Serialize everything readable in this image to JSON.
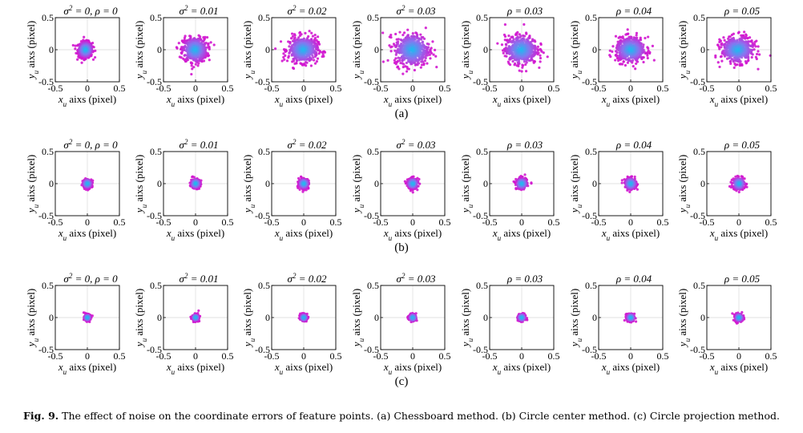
{
  "figure": {
    "caption_label": "Fig. 9.",
    "caption_text": "The effect of noise on the coordinate errors of feature points. (a) Chessboard method. (b) Circle center method. (c) Circle projection method."
  },
  "chart_data": {
    "type": "scatter",
    "subplot_titles": [
      "σ² = 0, ρ = 0",
      "σ² = 0.01",
      "σ² = 0.02",
      "σ² = 0.03",
      "ρ = 0.03",
      "ρ = 0.04",
      "ρ = 0.05"
    ],
    "xlabel": "x_u aixs (pixel)",
    "ylabel": "y_u aixs (pixel)",
    "xlim": [
      -0.5,
      0.5
    ],
    "ylim": [
      -0.5,
      0.5
    ],
    "x_ticks": [
      "-0.5",
      "0",
      "0.5"
    ],
    "y_ticks": [
      "0.5",
      "0",
      "-0.5"
    ],
    "grid": true,
    "colors": {
      "center": "#22b8f0",
      "mid": "#8a74ef",
      "outer": "#d216cf"
    },
    "rows": [
      {
        "label": "(a)",
        "method": "Chessboard method",
        "spread_x": [
          0.055,
          0.095,
          0.115,
          0.135,
          0.125,
          0.115,
          0.125
        ],
        "spread_y": [
          0.06,
          0.095,
          0.1,
          0.125,
          0.11,
          0.095,
          0.1
        ],
        "center_x": [
          -0.03,
          -0.01,
          -0.01,
          -0.01,
          -0.01,
          0.0,
          -0.02
        ]
      },
      {
        "label": "(b)",
        "method": "Circle center method",
        "spread_x": [
          0.034,
          0.036,
          0.038,
          0.04,
          0.042,
          0.044,
          0.046
        ],
        "spread_y": [
          0.034,
          0.036,
          0.038,
          0.04,
          0.042,
          0.044,
          0.046
        ],
        "center_x": [
          0,
          0,
          0,
          0,
          0,
          0,
          0
        ]
      },
      {
        "label": "(c)",
        "method": "Circle projection method",
        "spread_x": [
          0.024,
          0.025,
          0.026,
          0.027,
          0.028,
          0.029,
          0.03
        ],
        "spread_y": [
          0.024,
          0.025,
          0.026,
          0.027,
          0.028,
          0.029,
          0.03
        ],
        "center_x": [
          0,
          0,
          0,
          0,
          0,
          0,
          0
        ]
      }
    ]
  }
}
